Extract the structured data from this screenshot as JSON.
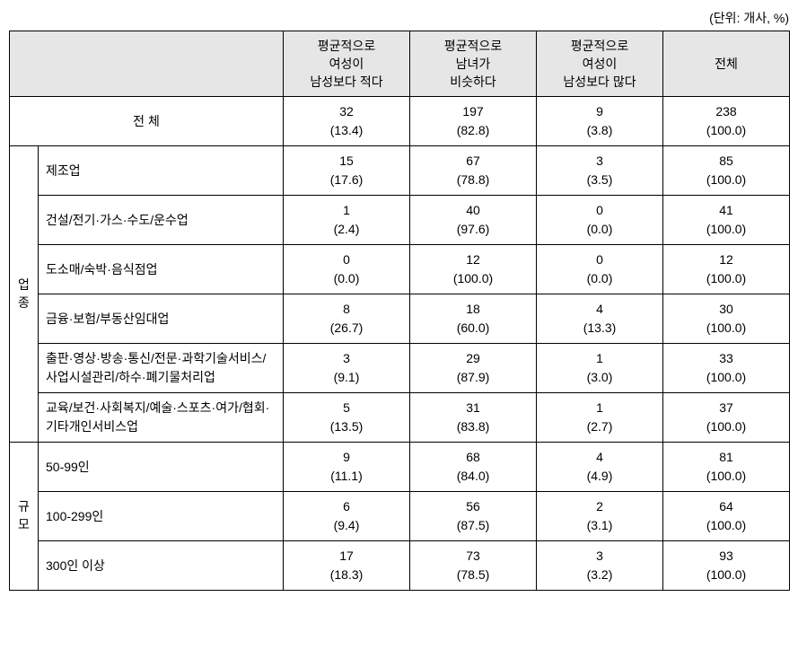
{
  "unit_note": "(단위: 개사, %)",
  "headers": {
    "col1": "평균적으로\n여성이\n남성보다 적다",
    "col2": "평균적으로\n남녀가\n비슷하다",
    "col3": "평균적으로\n여성이\n남성보다 많다",
    "col4": "전체"
  },
  "group_labels": {
    "industry_a": "업",
    "industry_b": "종",
    "size_a": "규",
    "size_b": "모"
  },
  "rows": {
    "total": {
      "label": "전 체",
      "c1": "32\n(13.4)",
      "c2": "197\n(82.8)",
      "c3": "9\n(3.8)",
      "c4": "238\n(100.0)"
    },
    "ind": [
      {
        "label": "제조업",
        "c1": "15\n(17.6)",
        "c2": "67\n(78.8)",
        "c3": "3\n(3.5)",
        "c4": "85\n(100.0)"
      },
      {
        "label": "건설/전기·가스·수도/운수업",
        "c1": "1\n(2.4)",
        "c2": "40\n(97.6)",
        "c3": "0\n(0.0)",
        "c4": "41\n(100.0)"
      },
      {
        "label": "도소매/숙박·음식점업",
        "c1": "0\n(0.0)",
        "c2": "12\n(100.0)",
        "c3": "0\n(0.0)",
        "c4": "12\n(100.0)"
      },
      {
        "label": "금융·보험/부동산임대업",
        "c1": "8\n(26.7)",
        "c2": "18\n(60.0)",
        "c3": "4\n(13.3)",
        "c4": "30\n(100.0)"
      },
      {
        "label": "출판·영상·방송·통신/전문·과학기술서비스/사업시설관리/하수·폐기물처리업",
        "c1": "3\n(9.1)",
        "c2": "29\n(87.9)",
        "c3": "1\n(3.0)",
        "c4": "33\n(100.0)"
      },
      {
        "label": "교육/보건·사회복지/예술·스포츠·여가/협회·기타개인서비스업",
        "c1": "5\n(13.5)",
        "c2": "31\n(83.8)",
        "c3": "1\n(2.7)",
        "c4": "37\n(100.0)"
      }
    ],
    "size": [
      {
        "label": "50-99인",
        "c1": "9\n(11.1)",
        "c2": "68\n(84.0)",
        "c3": "4\n(4.9)",
        "c4": "81\n(100.0)"
      },
      {
        "label": "100-299인",
        "c1": "6\n(9.4)",
        "c2": "56\n(87.5)",
        "c3": "2\n(3.1)",
        "c4": "64\n(100.0)"
      },
      {
        "label": "300인 이상",
        "c1": "17\n(18.3)",
        "c2": "73\n(78.5)",
        "c3": "3\n(3.2)",
        "c4": "93\n(100.0)"
      }
    ]
  },
  "style": {
    "header_bg": "#e6e6e6",
    "border_color": "#000000",
    "font_size_pt": 14,
    "background": "#ffffff"
  }
}
